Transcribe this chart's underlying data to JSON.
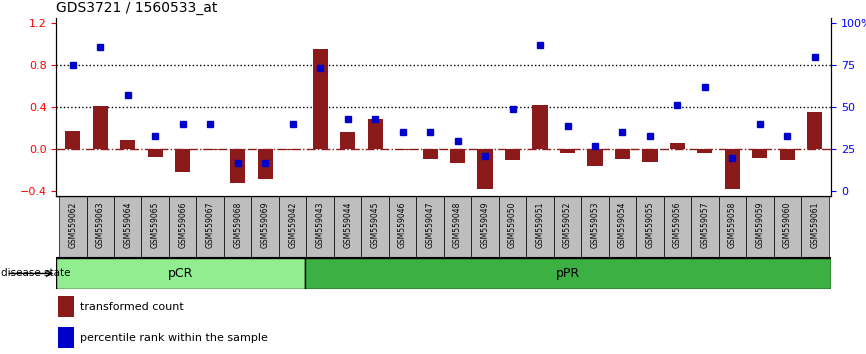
{
  "title": "GDS3721 / 1560533_at",
  "samples": [
    "GSM559062",
    "GSM559063",
    "GSM559064",
    "GSM559065",
    "GSM559066",
    "GSM559067",
    "GSM559068",
    "GSM559069",
    "GSM559042",
    "GSM559043",
    "GSM559044",
    "GSM559045",
    "GSM559046",
    "GSM559047",
    "GSM559048",
    "GSM559049",
    "GSM559050",
    "GSM559051",
    "GSM559052",
    "GSM559053",
    "GSM559054",
    "GSM559055",
    "GSM559056",
    "GSM559057",
    "GSM559058",
    "GSM559059",
    "GSM559060",
    "GSM559061"
  ],
  "transformed_count": [
    0.17,
    0.41,
    0.09,
    -0.07,
    -0.22,
    -0.01,
    -0.32,
    -0.28,
    -0.01,
    0.95,
    0.16,
    0.29,
    -0.01,
    -0.09,
    -0.13,
    -0.38,
    -0.1,
    0.42,
    -0.04,
    -0.16,
    -0.09,
    -0.12,
    0.06,
    -0.04,
    -0.38,
    -0.08,
    -0.1,
    0.35
  ],
  "percentile_rank": [
    75,
    86,
    57,
    33,
    40,
    40,
    17,
    17,
    40,
    73,
    43,
    43,
    35,
    35,
    30,
    21,
    49,
    87,
    39,
    27,
    35,
    33,
    51,
    62,
    20,
    40,
    33,
    80
  ],
  "pcr_count": 9,
  "ppr_count": 19,
  "ylim_left": [
    -0.45,
    1.25
  ],
  "ylim_right": [
    0,
    105
  ],
  "yticks_left": [
    -0.4,
    0.0,
    0.4,
    0.8,
    1.2
  ],
  "yticks_right": [
    0,
    25,
    50,
    75,
    100
  ],
  "hline_y_left": [
    0.8,
    0.4
  ],
  "bar_color": "#8B1A1A",
  "dot_color": "#0000CD",
  "pcr_color": "#90EE90",
  "ppr_color": "#3CB043",
  "tick_bg_color": "#BEBEBE",
  "disease_state_label": "disease state",
  "pcr_label": "pCR",
  "ppr_label": "pPR",
  "legend_bar_label": "transformed count",
  "legend_dot_label": "percentile rank within the sample",
  "zero_line_color": "#8B1A1A",
  "dotted_line_color": "#000000"
}
